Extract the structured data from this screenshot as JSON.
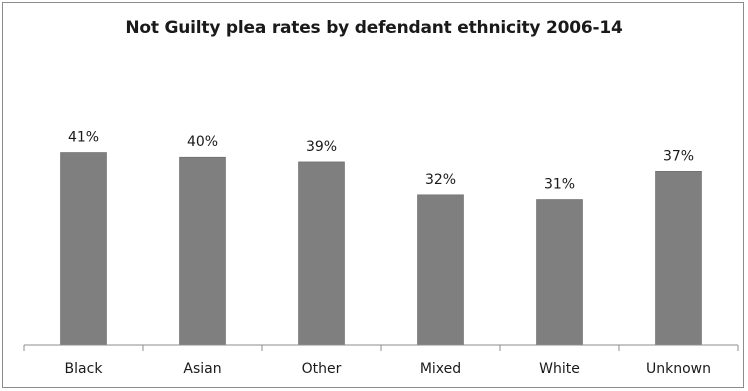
{
  "chart_data": {
    "type": "bar",
    "title": "Not Guilty plea rates by defendant ethnicity 2006-14",
    "categories": [
      "Black",
      "Asian",
      "Other",
      "Mixed",
      "White",
      "Unknown"
    ],
    "values": [
      41,
      40,
      39,
      32,
      31,
      37
    ],
    "data_labels": [
      "41%",
      "40%",
      "39%",
      "32%",
      "31%",
      "37%"
    ],
    "ylim": [
      0,
      100
    ],
    "grid": false,
    "legend": "none",
    "colors": {
      "bar": "#7f7f7f",
      "axis": "#8c8c8c",
      "text": "#1a1a1a"
    }
  }
}
